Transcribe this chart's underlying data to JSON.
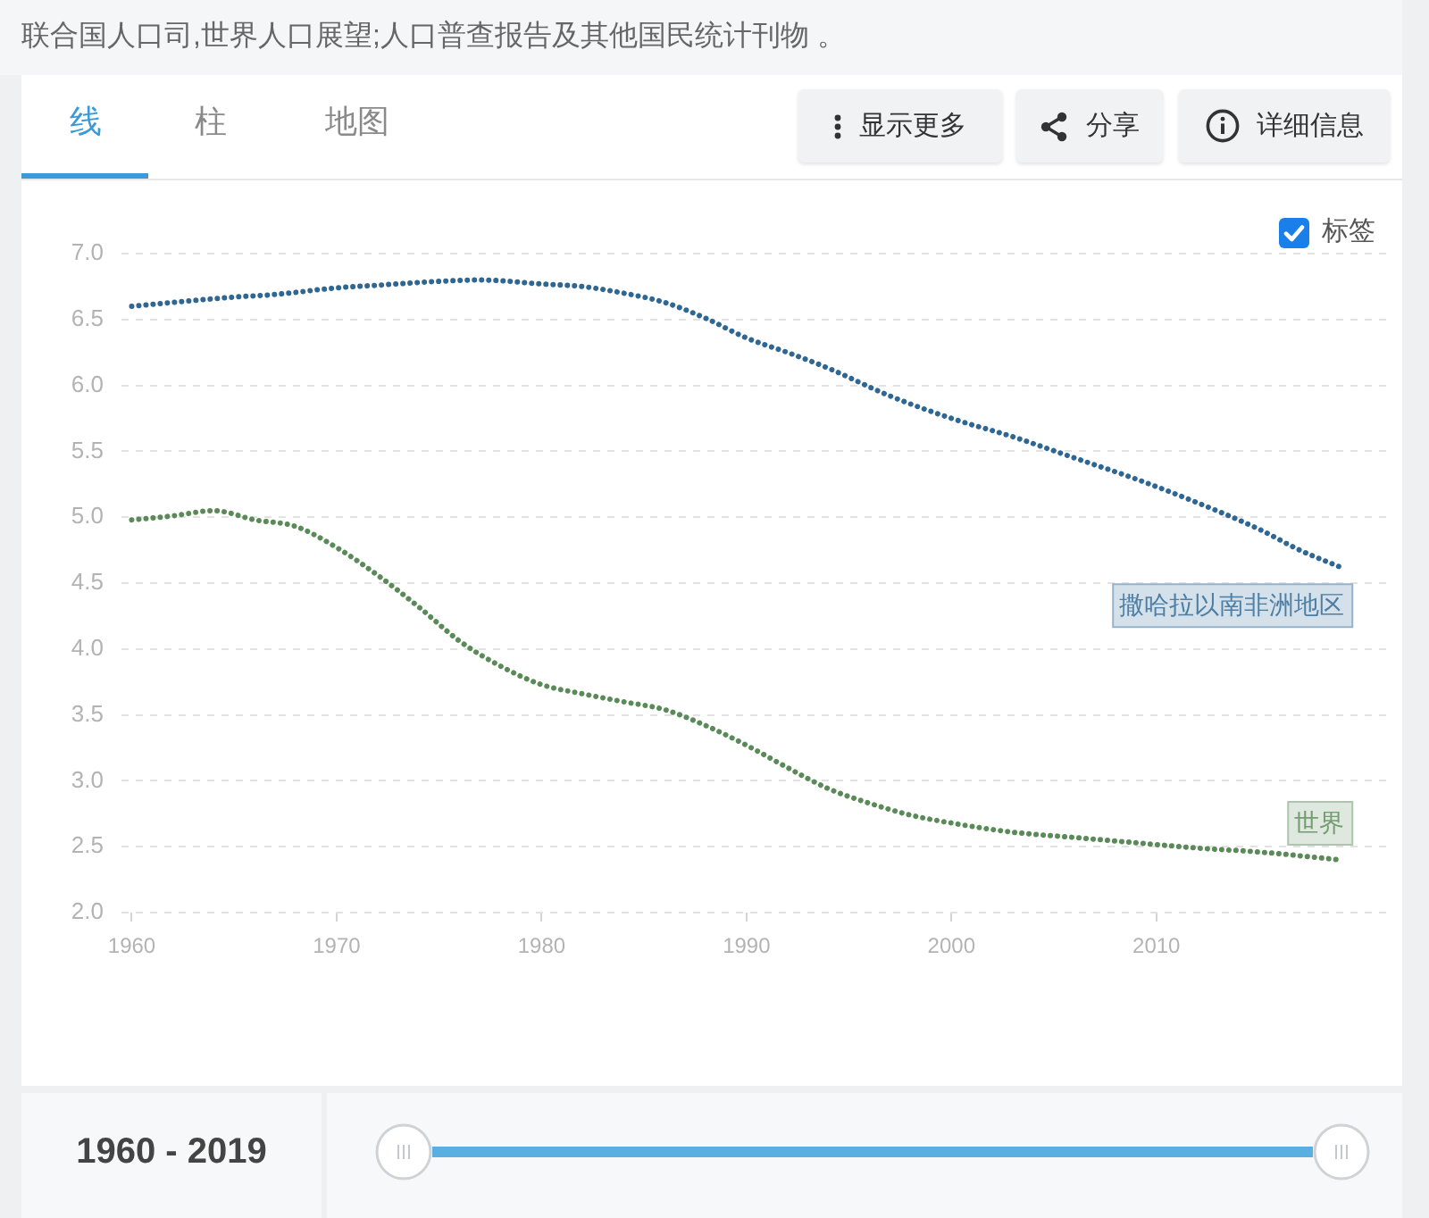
{
  "chart_data": {
    "type": "line",
    "annotations": [
      "联合国人口司,世界人口展望;人口普查报告及其他国民统计刊物 。",
      "线",
      "柱",
      "地图",
      "显示更多",
      "分享",
      "详细信息",
      "标签",
      "1960 - 2019"
    ],
    "xlim": [
      1959.5,
      2021.3
    ],
    "xticks": [
      1960,
      1970,
      1980,
      1990,
      2000,
      2010
    ],
    "ylim": [
      2,
      7
    ],
    "yticks": [
      {
        "value": 2,
        "label": "2.0"
      },
      2.5,
      {
        "value": 3,
        "label": "3.0"
      },
      3.5,
      {
        "value": 4,
        "label": "4.0"
      },
      4.5,
      {
        "value": 5,
        "label": "5.0"
      },
      5.5,
      {
        "value": 6,
        "label": "6.0"
      },
      6.5,
      {
        "value": 7,
        "label": "7.0"
      }
    ],
    "grid": "y",
    "legend": false,
    "line_style": "dotted",
    "marker": "none",
    "series": [
      {
        "name": "撒哈拉以南非洲地区",
        "color": "#2e6794",
        "x": [
          1960,
          1962,
          1965,
          1967,
          1970,
          1972,
          1975,
          1977,
          1980,
          1982,
          1984,
          1986,
          1988,
          1990,
          1992,
          1994,
          1997,
          2000,
          2003,
          2006,
          2009,
          2012,
          2015,
          2017,
          2019
        ],
        "values": [
          6.6,
          6.63,
          6.67,
          6.69,
          6.74,
          6.76,
          6.79,
          6.8,
          6.77,
          6.75,
          6.7,
          6.63,
          6.51,
          6.36,
          6.25,
          6.13,
          5.92,
          5.75,
          5.61,
          5.45,
          5.29,
          5.11,
          4.91,
          4.75,
          4.62
        ]
      },
      {
        "name": "世界",
        "color": "#5a8a58",
        "x": [
          1960,
          1962,
          1964,
          1966,
          1968,
          1970,
          1972,
          1974,
          1976,
          1978,
          1980,
          1982,
          1984,
          1986,
          1988,
          1990,
          1992,
          1994,
          1996,
          1998,
          2000,
          2003,
          2006,
          2009,
          2012,
          2015,
          2019
        ],
        "values": [
          4.98,
          5.01,
          5.05,
          4.98,
          4.93,
          4.77,
          4.56,
          4.32,
          4.06,
          3.87,
          3.73,
          3.66,
          3.6,
          3.54,
          3.42,
          3.27,
          3.1,
          2.94,
          2.83,
          2.74,
          2.68,
          2.61,
          2.57,
          2.53,
          2.49,
          2.46,
          2.4
        ]
      }
    ]
  }
}
